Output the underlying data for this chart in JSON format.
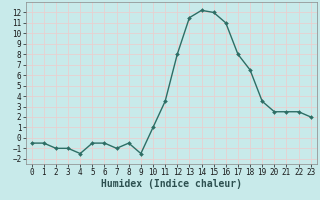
{
  "x": [
    0,
    1,
    2,
    3,
    4,
    5,
    6,
    7,
    8,
    9,
    10,
    11,
    12,
    13,
    14,
    15,
    16,
    17,
    18,
    19,
    20,
    21,
    22,
    23
  ],
  "y": [
    -0.5,
    -0.5,
    -1.0,
    -1.0,
    -1.5,
    -0.5,
    -0.5,
    -1.0,
    -0.5,
    -1.5,
    1.0,
    3.5,
    8.0,
    11.5,
    12.2,
    12.0,
    11.0,
    8.0,
    6.5,
    3.5,
    2.5,
    2.5,
    2.5,
    2.0
  ],
  "xlabel": "Humidex (Indice chaleur)",
  "xlim": [
    -0.5,
    23.5
  ],
  "ylim": [
    -2.5,
    13.0
  ],
  "yticks": [
    -2,
    -1,
    0,
    1,
    2,
    3,
    4,
    5,
    6,
    7,
    8,
    9,
    10,
    11,
    12
  ],
  "xticks": [
    0,
    1,
    2,
    3,
    4,
    5,
    6,
    7,
    8,
    9,
    10,
    11,
    12,
    13,
    14,
    15,
    16,
    17,
    18,
    19,
    20,
    21,
    22,
    23
  ],
  "line_color": "#2d6e65",
  "marker_color": "#2d6e65",
  "bg_color": "#c8eaea",
  "plot_bg_color": "#c8eaea",
  "grid_color": "#e8d0d0",
  "xlabel_color": "#2d5050",
  "tick_label_color": "#1a1a1a",
  "xlabel_fontsize": 7,
  "tick_fontsize": 5.5,
  "linewidth": 1.0,
  "markersize": 2.0
}
